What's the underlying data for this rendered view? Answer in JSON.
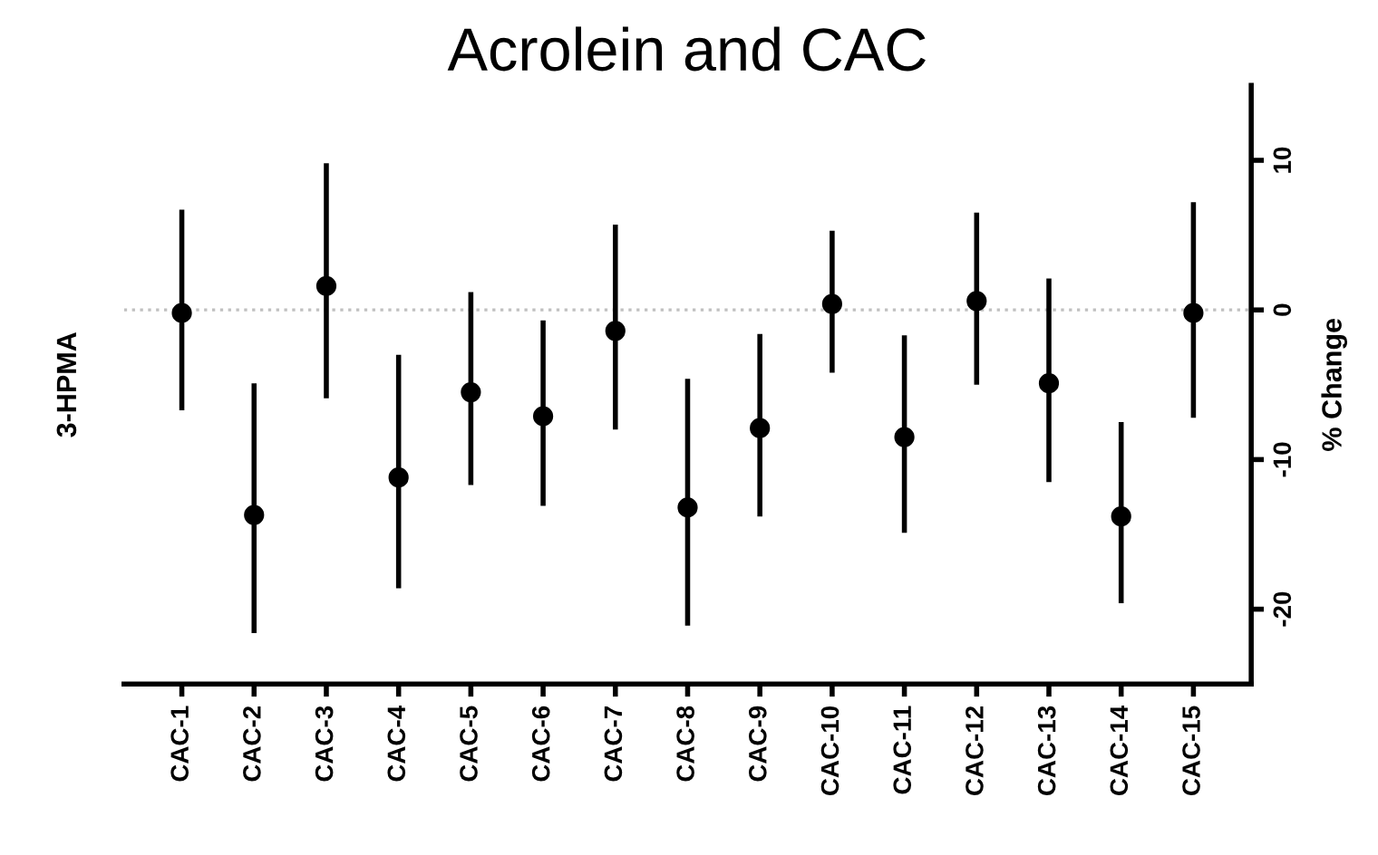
{
  "chart_data": {
    "type": "scatter",
    "title": "Acrolein and CAC",
    "ylabel": "% Change",
    "annotations": [
      "3-HPMA"
    ],
    "categories": [
      "CAC-1",
      "CAC-2",
      "CAC-3",
      "CAC-4",
      "CAC-5",
      "CAC-6",
      "CAC-7",
      "CAC-8",
      "CAC-9",
      "CAC-10",
      "CAC-11",
      "CAC-12",
      "CAC-13",
      "CAC-14",
      "CAC-15"
    ],
    "values": [
      -0.2,
      -13.7,
      1.6,
      -11.2,
      -5.5,
      -7.1,
      -1.4,
      -13.2,
      -7.9,
      0.4,
      -8.5,
      0.6,
      -4.9,
      -13.8,
      -0.2
    ],
    "errors": [
      [
        -6.7,
        6.7
      ],
      [
        -21.6,
        -4.9
      ],
      [
        -5.9,
        9.8
      ],
      [
        -18.6,
        -3.0
      ],
      [
        -11.7,
        1.2
      ],
      [
        -13.1,
        -0.7
      ],
      [
        -8.0,
        5.7
      ],
      [
        -21.1,
        -4.6
      ],
      [
        -13.8,
        -1.6
      ],
      [
        -4.2,
        5.3
      ],
      [
        -14.9,
        -1.7
      ],
      [
        -5.0,
        6.5
      ],
      [
        -11.5,
        2.1
      ],
      [
        -19.6,
        -7.5
      ],
      [
        -7.2,
        7.2
      ]
    ],
    "color": "#000000",
    "marker": "circle",
    "ylim": [
      -25,
      15
    ],
    "yticks": [
      -20,
      -10,
      0,
      10
    ],
    "ref_lines": [
      {
        "axis": "y",
        "value": 0,
        "color": "#c0c0c0",
        "line_style": "dotted"
      }
    ],
    "grid": false,
    "legend": false
  }
}
